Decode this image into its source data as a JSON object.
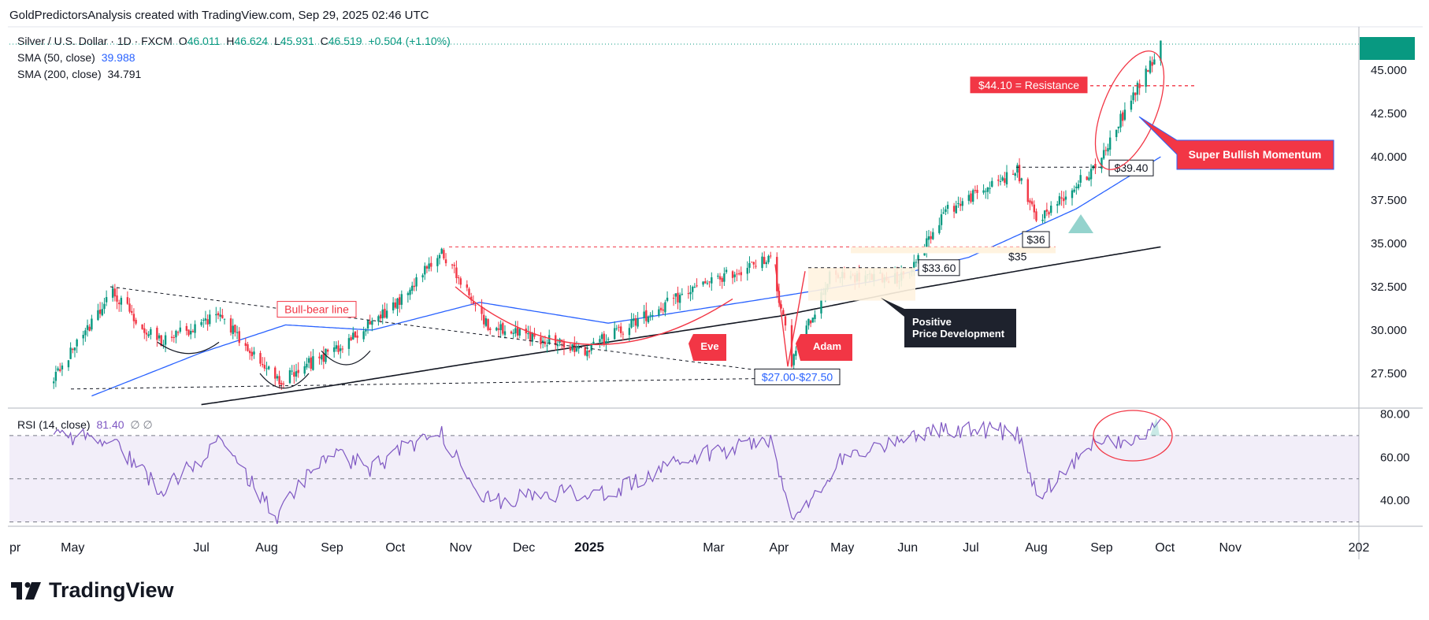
{
  "header": {
    "attribution": "GoldPredictorsAnalysis created with TradingView.com, Sep 29, 2025 02:46 UTC"
  },
  "legend": {
    "symbol": "Silver / U.S. Dollar · 1D · FXCM",
    "open_label": "O",
    "open": "46.011",
    "high_label": "H",
    "high": "46.624",
    "low_label": "L",
    "low": "45.931",
    "close_label": "C",
    "close": "46.519",
    "change": "+0.504 (+1.10%)",
    "sma50_label": "SMA (50, close)",
    "sma50_value": "39.988",
    "sma200_label": "SMA (200, close)",
    "sma200_value": "34.791",
    "rsi_label": "RSI (14, close)",
    "rsi_value": "81.40",
    "rsi_extra": "∅ ∅"
  },
  "currency": "USD",
  "brand": "TradingView",
  "colors": {
    "up": "#089981",
    "down": "#f23645",
    "sma50": "#2962ff",
    "sma200": "#131722",
    "rsi": "#7e57c2",
    "annotation_red": "#f23645",
    "annotation_dark": "#1e222d"
  },
  "chart_data": [
    {
      "type": "candlestick",
      "title": "Silver / U.S. Dollar · 1D · FXCM",
      "ylim": [
        25.5,
        47.5
      ],
      "y_ticks": [
        "45.000",
        "42.500",
        "40.000",
        "37.500",
        "35.000",
        "32.500",
        "30.000",
        "27.500"
      ],
      "x_ticks": [
        "pr",
        "May",
        "Jul",
        "Aug",
        "Sep",
        "Oct",
        "Nov",
        "Dec",
        "2025",
        "Mar",
        "Apr",
        "May",
        "Jun",
        "Jul",
        "Aug",
        "Sep",
        "Oct",
        "Nov",
        "202"
      ],
      "price_anchors": {
        "dates": [
          "2024-04-20",
          "2024-05-20",
          "2024-06-10",
          "2024-07-10",
          "2024-08-06",
          "2024-09-01",
          "2024-10-01",
          "2024-10-23",
          "2024-11-14",
          "2024-12-30",
          "2025-02-20",
          "2025-03-28",
          "2025-04-07",
          "2025-04-25",
          "2025-05-31",
          "2025-06-18",
          "2025-07-23",
          "2025-08-01",
          "2025-08-29",
          "2025-09-29"
        ],
        "close": [
          27.0,
          32.2,
          29.3,
          30.8,
          27.0,
          28.8,
          31.5,
          34.6,
          30.2,
          28.9,
          32.4,
          34.2,
          28.2,
          33.1,
          33.0,
          36.8,
          39.2,
          36.3,
          39.4,
          46.5
        ]
      },
      "sma50": {
        "dates": [
          "2024-05-10",
          "2024-07-01",
          "2024-08-10",
          "2024-09-20",
          "2024-11-10",
          "2025-01-10",
          "2025-03-20",
          "2025-05-15",
          "2025-06-30",
          "2025-08-20",
          "2025-09-29"
        ],
        "values": [
          26.2,
          28.7,
          30.3,
          30.0,
          31.6,
          30.4,
          31.7,
          32.8,
          34.2,
          37.0,
          40.0
        ]
      },
      "sma200": {
        "dates": [
          "2024-07-01",
          "2024-09-01",
          "2024-11-01",
          "2025-01-15",
          "2025-04-01",
          "2025-06-01",
          "2025-08-01",
          "2025-09-29"
        ],
        "values": [
          25.7,
          26.8,
          28.0,
          29.4,
          30.8,
          32.3,
          33.6,
          34.8
        ]
      },
      "annotations": {
        "resistance_label": "$44.10 = Resistance",
        "resistance_value": 44.1,
        "momentum_label": "Super Bullish Momentum",
        "bull_bear_label": "Bull-bear line",
        "eve_label": "Eve",
        "adam_label": "Adam",
        "support_range_label": "$27.00-$27.50",
        "positive_label_1": "Positive",
        "positive_label_2": "Price Development",
        "level_3360_label": "$33.60",
        "level_35_label": "$35",
        "level_36_label": "$36",
        "level_3940_label": "$39.40",
        "sma50_tag": "40.0"
      }
    },
    {
      "type": "line",
      "title": "RSI (14, close)",
      "ylim": [
        28,
        82
      ],
      "y_ticks": [
        "80.00",
        "60.00",
        "40.00"
      ],
      "band": [
        30,
        70
      ],
      "rsi_anchors": {
        "dates": [
          "2024-04-20",
          "2024-05-20",
          "2024-06-12",
          "2024-07-10",
          "2024-08-06",
          "2024-08-28",
          "2024-09-20",
          "2024-10-21",
          "2024-11-14",
          "2025-01-15",
          "2025-02-20",
          "2025-03-28",
          "2025-04-08",
          "2025-05-01",
          "2025-05-31",
          "2025-06-15",
          "2025-07-23",
          "2025-08-01",
          "2025-09-01",
          "2025-09-20",
          "2025-09-29"
        ],
        "values": [
          70,
          68,
          45,
          67,
          32,
          62,
          55,
          73,
          40,
          45,
          60,
          69,
          29,
          60,
          69,
          73,
          72,
          42,
          70,
          66,
          81.4
        ]
      }
    }
  ]
}
